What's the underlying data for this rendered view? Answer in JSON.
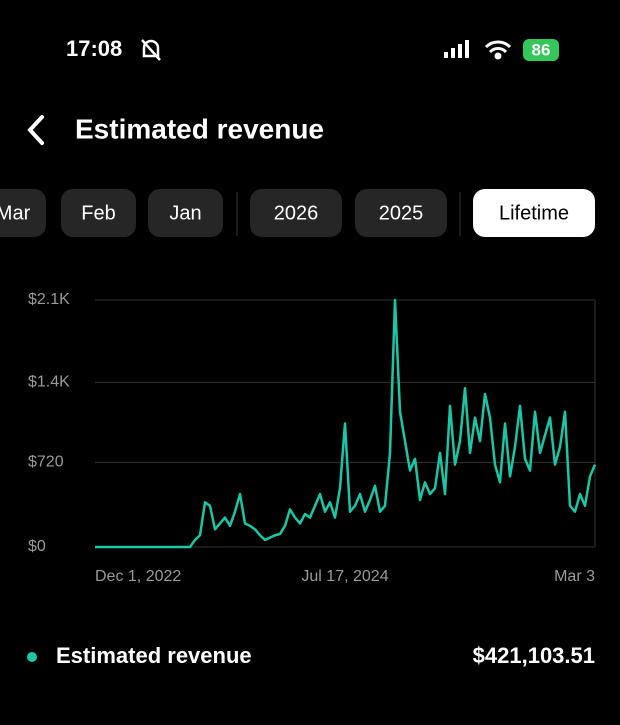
{
  "status": {
    "time": "17:08",
    "battery": "86"
  },
  "header": {
    "title": "Estimated revenue"
  },
  "tabs": [
    "Mar",
    "Feb",
    "Jan",
    "2026",
    "2025",
    "Lifetime"
  ],
  "selected_tab": "Lifetime",
  "chart_data": {
    "type": "line",
    "categories": [
      "Dec 1, 2022",
      null,
      null,
      null,
      null,
      null,
      null,
      null,
      null,
      null,
      null,
      null,
      null,
      null,
      null,
      null,
      null,
      null,
      null,
      null,
      null,
      null,
      null,
      null,
      null,
      null,
      null,
      null,
      null,
      null,
      null,
      null,
      null,
      null,
      null,
      null,
      null,
      null,
      null,
      null,
      null,
      null,
      null,
      null,
      null,
      null,
      null,
      null,
      null,
      null,
      "Jul 17, 2024",
      null,
      null,
      null,
      null,
      null,
      null,
      null,
      null,
      null,
      null,
      null,
      null,
      null,
      null,
      null,
      null,
      null,
      null,
      null,
      null,
      null,
      null,
      null,
      null,
      null,
      null,
      null,
      null,
      null,
      null,
      null,
      null,
      null,
      null,
      null,
      null,
      null,
      null,
      null,
      null,
      null,
      null,
      null,
      null,
      null,
      null,
      null,
      null,
      null,
      "Mar 3"
    ],
    "series": [
      {
        "name": "Estimated revenue",
        "color": "#19c7a6",
        "values": [
          0,
          0,
          0,
          0,
          0,
          0,
          0,
          0,
          0,
          0,
          0,
          0,
          0,
          0,
          0,
          0,
          0,
          0,
          0,
          0,
          60,
          100,
          380,
          350,
          150,
          200,
          250,
          180,
          300,
          450,
          200,
          180,
          150,
          100,
          60,
          80,
          100,
          110,
          180,
          320,
          250,
          200,
          280,
          250,
          350,
          450,
          300,
          380,
          250,
          500,
          1050,
          300,
          350,
          450,
          300,
          400,
          520,
          300,
          350,
          800,
          2100,
          1150,
          900,
          650,
          750,
          400,
          550,
          450,
          500,
          800,
          450,
          1200,
          700,
          900,
          1350,
          800,
          1100,
          900,
          1300,
          1100,
          700,
          550,
          1050,
          600,
          850,
          1200,
          750,
          650,
          1150,
          800,
          950,
          1100,
          700,
          850,
          1150,
          350,
          300,
          450,
          350,
          600,
          700
        ]
      }
    ],
    "ylim": [
      0,
      2100
    ],
    "yticks": [
      {
        "value": 0,
        "label": "$0"
      },
      {
        "value": 720,
        "label": "$720"
      },
      {
        "value": 1400,
        "label": "$1.4K"
      },
      {
        "value": 2100,
        "label": "$2.1K"
      }
    ],
    "grid": true
  },
  "summary": {
    "total": "$421,103.51"
  }
}
